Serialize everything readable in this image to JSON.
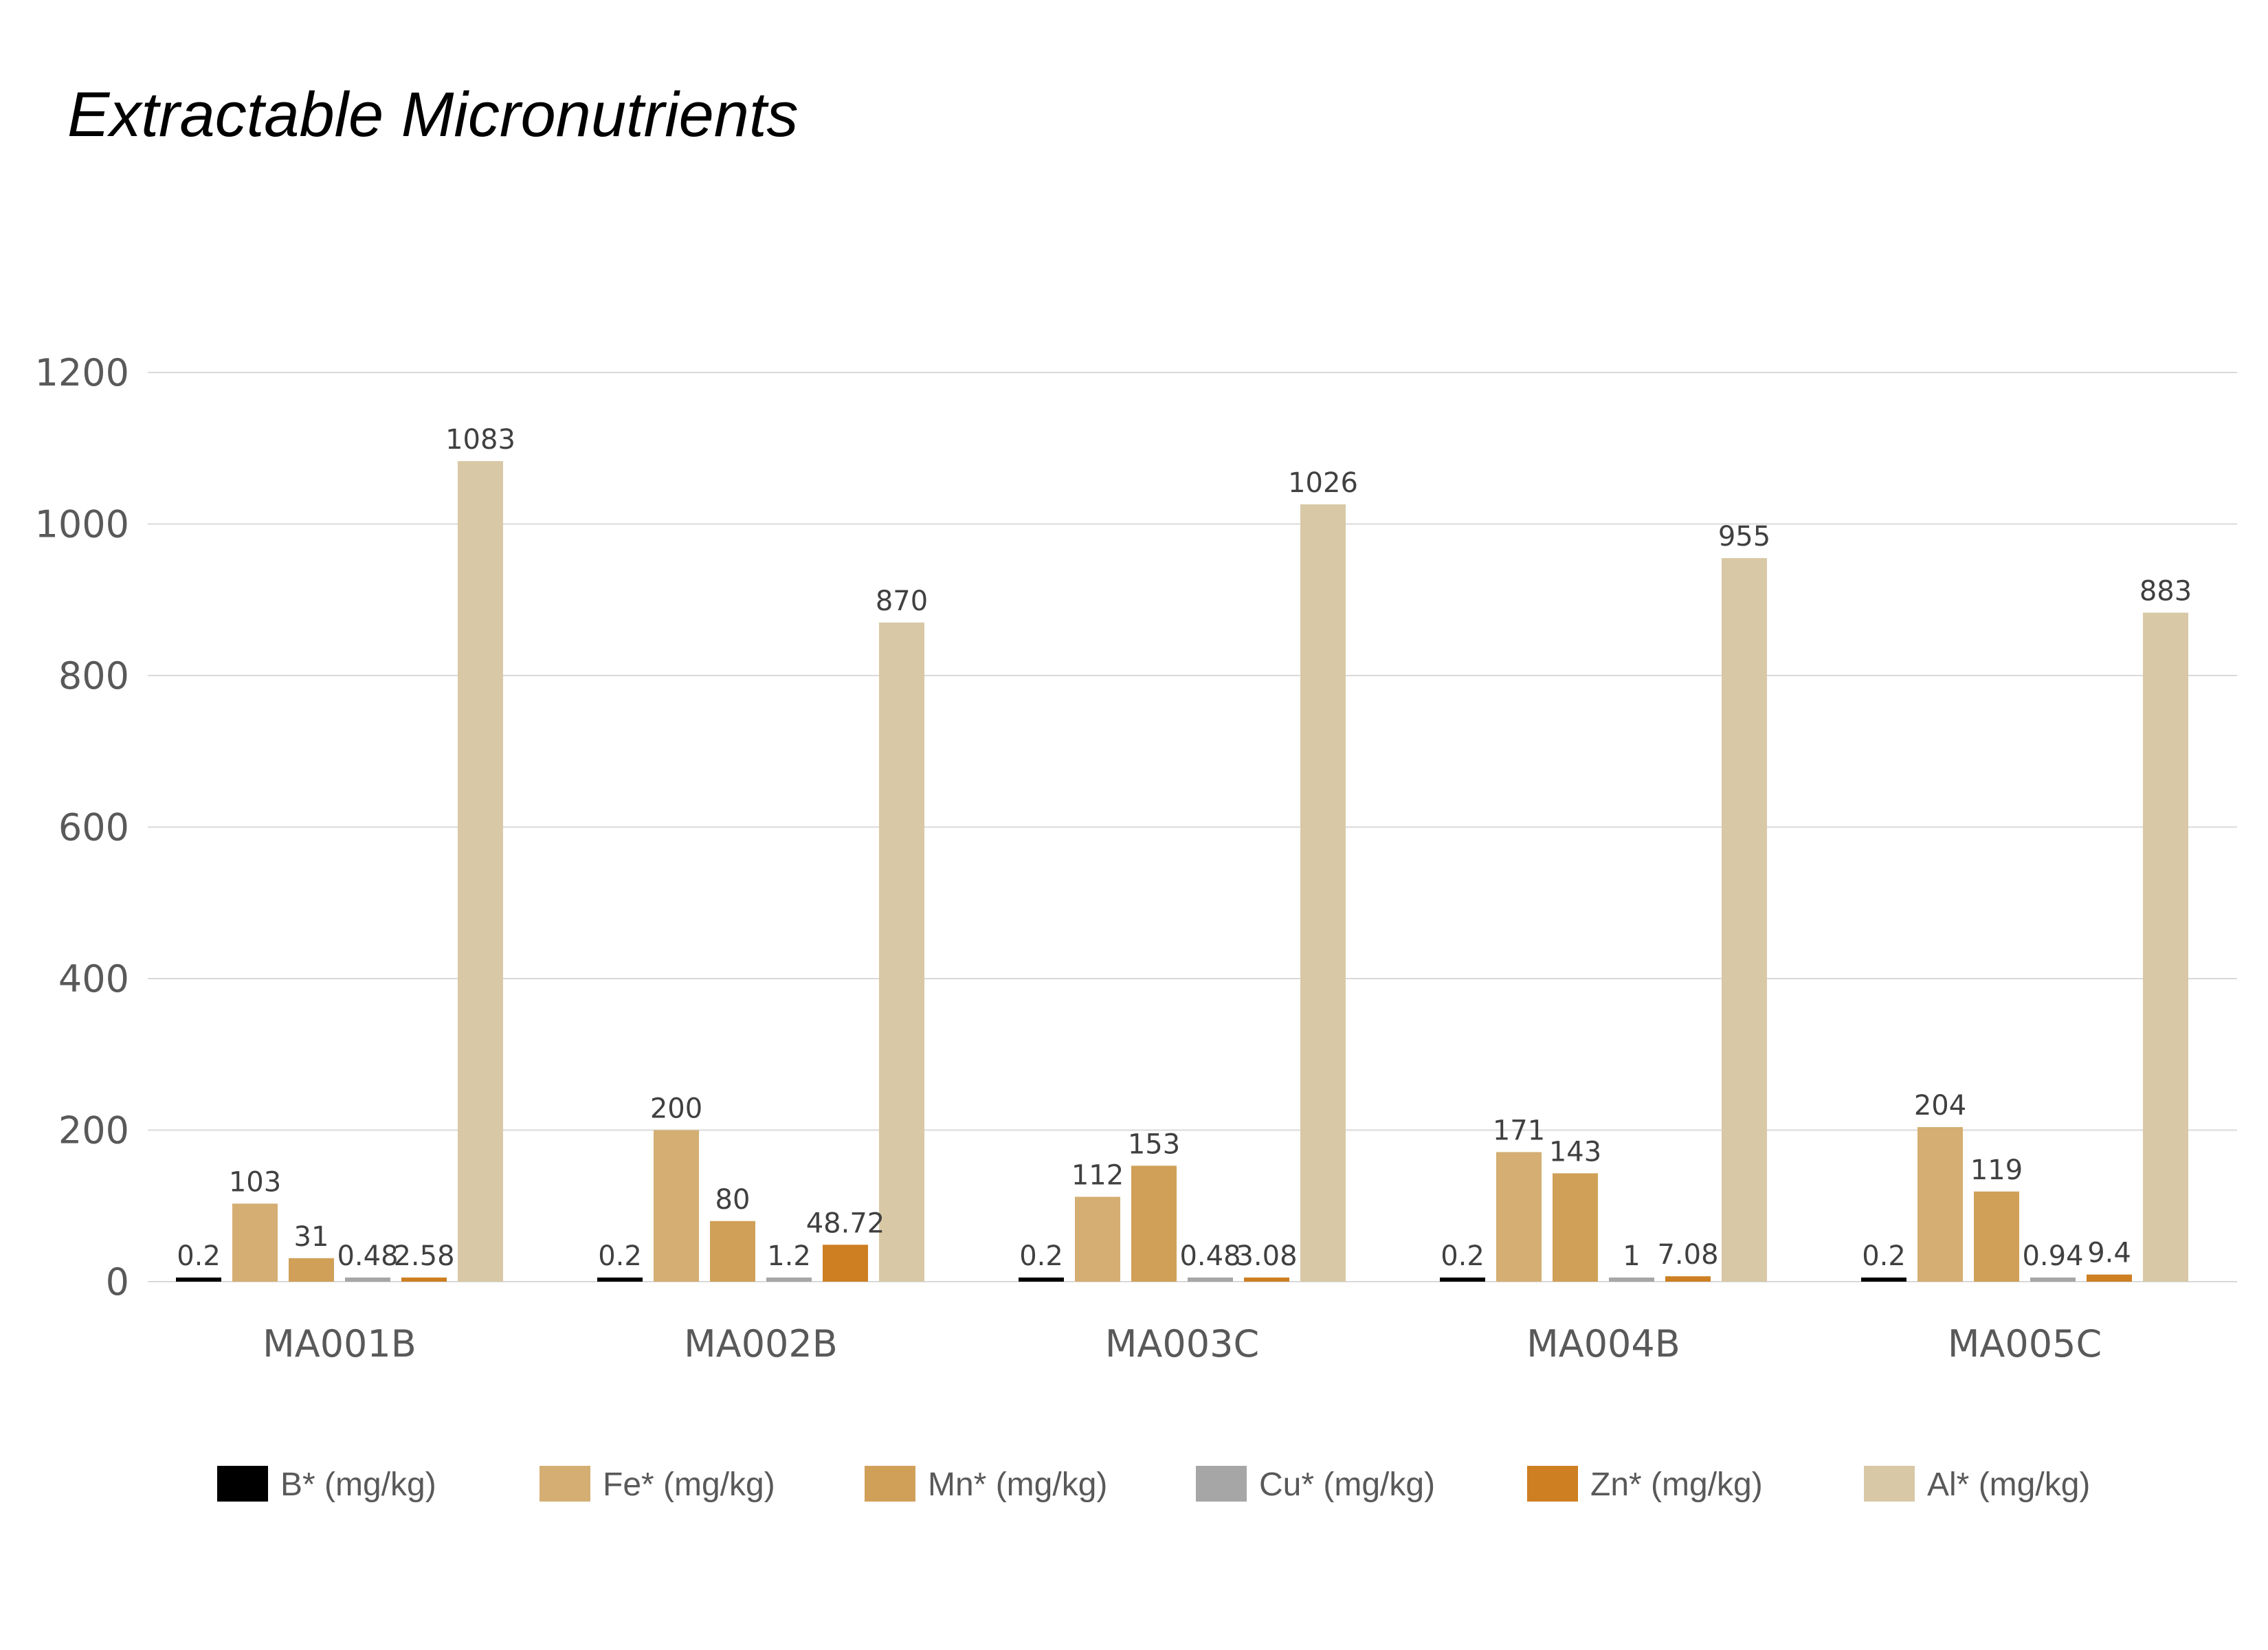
{
  "chart_data": {
    "type": "bar",
    "title": "Extractable Micronutrients",
    "xlabel": "",
    "ylabel": "",
    "categories": [
      "MA001B",
      "MA002B",
      "MA003C",
      "MA004B",
      "MA005C"
    ],
    "series": [
      {
        "name": "B* (mg/kg)",
        "color": "#000000",
        "values": [
          0.2,
          0.2,
          0.2,
          0.2,
          0.2
        ],
        "labels": [
          "0.2",
          "0.2",
          "0.2",
          "0.2",
          "0.2"
        ]
      },
      {
        "name": "Fe* (mg/kg)",
        "color": "#D4AE72",
        "values": [
          103,
          200,
          112,
          171,
          204
        ],
        "labels": [
          "103",
          "200",
          "112",
          "171",
          "204"
        ]
      },
      {
        "name": "Mn* (mg/kg)",
        "color": "#D0A058",
        "values": [
          31,
          80,
          153,
          143,
          119
        ],
        "labels": [
          "31",
          "80",
          "153",
          "143",
          "119"
        ]
      },
      {
        "name": "Cu* (mg/kg)",
        "color": "#A6A6A6",
        "values": [
          0.48,
          1.2,
          0.48,
          1,
          0.94
        ],
        "labels": [
          "0.48",
          "1.2",
          "0.48",
          "1",
          "0.94"
        ]
      },
      {
        "name": "Zn* (mg/kg)",
        "color": "#CD7F22",
        "values": [
          2.58,
          48.72,
          3.08,
          7.08,
          9.4
        ],
        "labels": [
          "2.58",
          "48.72",
          "3.08",
          "7.08",
          "9.4"
        ]
      },
      {
        "name": "Al* (mg/kg)",
        "color": "#D8C8A5",
        "values": [
          1083,
          870,
          1026,
          955,
          883
        ],
        "labels": [
          "1083",
          "870",
          "1026",
          "955",
          "883"
        ]
      }
    ],
    "ylim": [
      0,
      1200
    ],
    "yticks": [
      "0",
      "200",
      "400",
      "600",
      "800",
      "1000",
      "1200"
    ],
    "ytick_values": [
      0,
      200,
      400,
      600,
      800,
      1000,
      1200
    ],
    "grid": true,
    "legend_position": "bottom"
  }
}
